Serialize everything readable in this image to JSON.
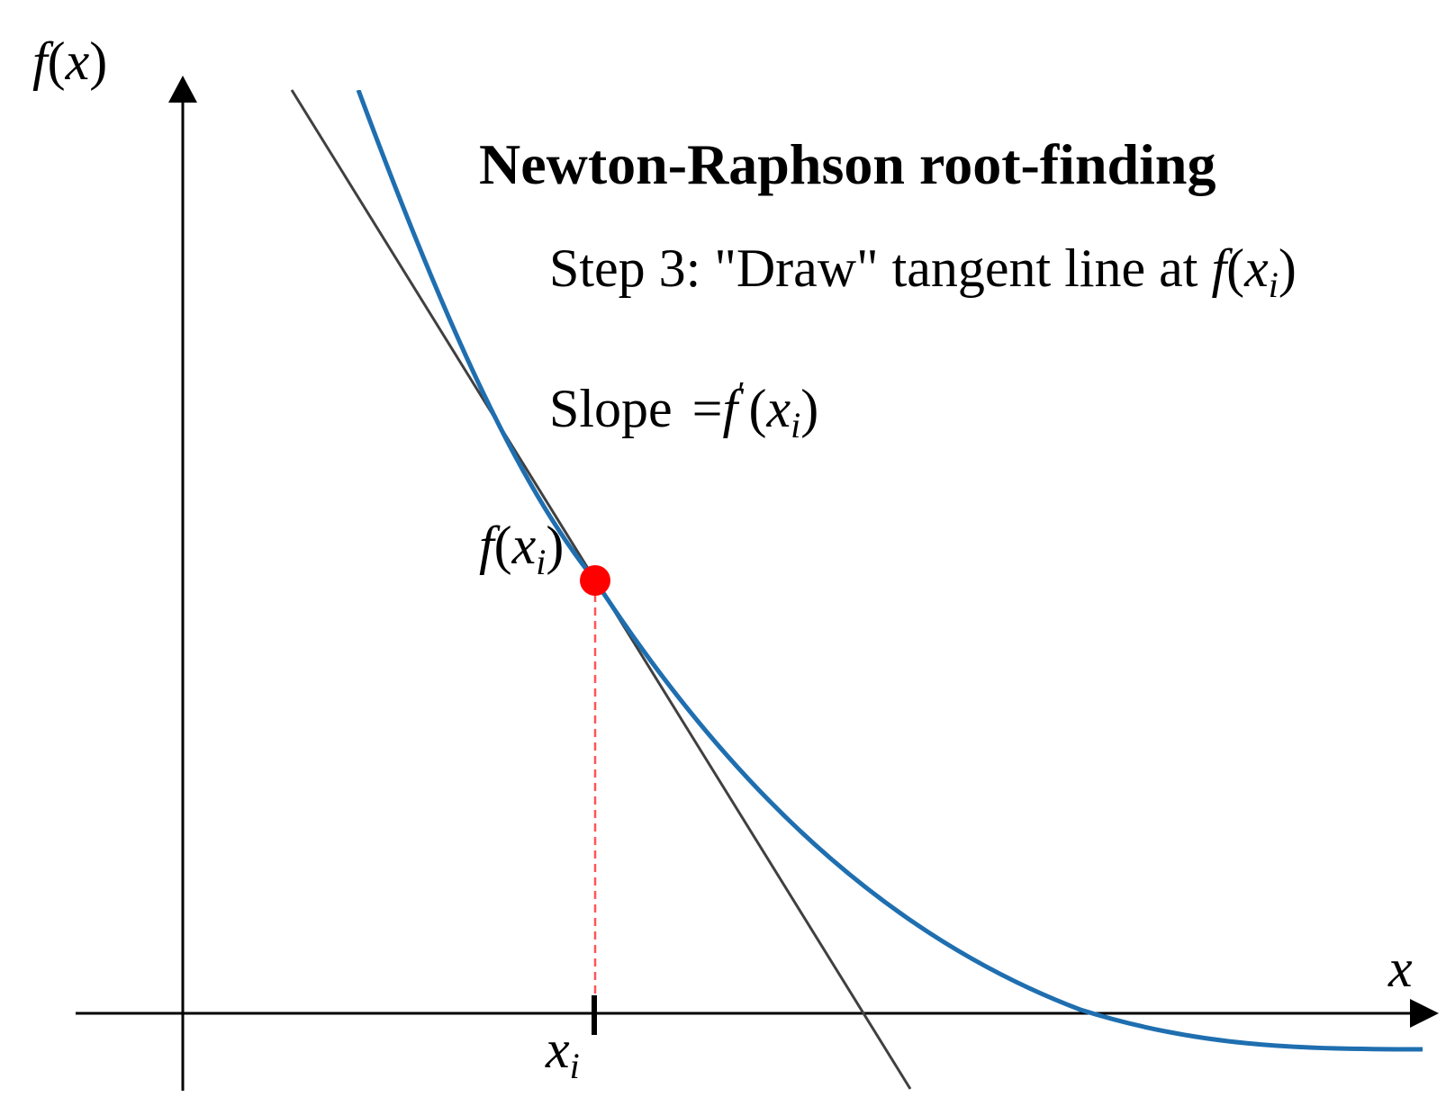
{
  "title": "Newton-Raphson root-finding",
  "step": {
    "prefix": "Step 3: \"Draw\" tangent line at ",
    "f": "f",
    "open": "(",
    "x": "x",
    "sub": "i",
    "close": ")"
  },
  "slope": {
    "word": "Slope",
    "eq": "=",
    "f": "f",
    "prime": "′",
    "open": "(",
    "x": "x",
    "sub": "i",
    "close": ")"
  },
  "y_axis_label": {
    "f": "f",
    "open": "(",
    "x": "x",
    "close": ")"
  },
  "x_axis_label": "x",
  "point_label": {
    "f": "f",
    "open": "(",
    "x": "x",
    "sub": "i",
    "close": ")"
  },
  "tick_label": {
    "x": "x",
    "sub": "i"
  },
  "colors": {
    "curve": "#1f6fb0",
    "tangent": "#404040",
    "point": "#ff0000",
    "guide": "#ff5555",
    "axes": "#000000"
  },
  "icons": {
    "axis_arrow": "arrowhead"
  }
}
